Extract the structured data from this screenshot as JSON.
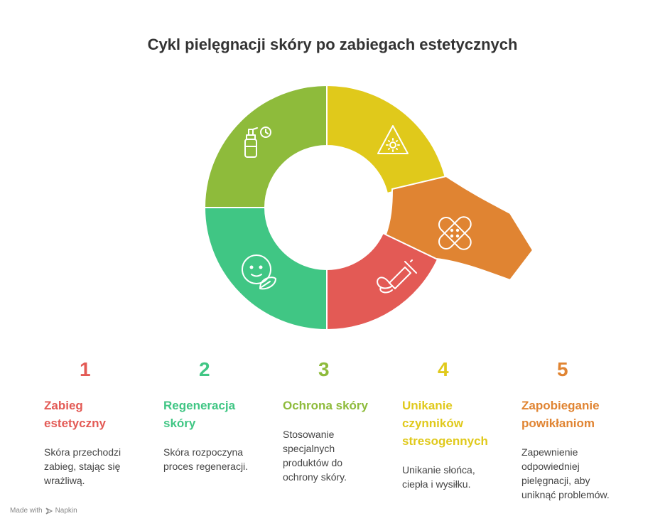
{
  "title": "Cykl pielęgnacji skóry po zabiegach estetycznych",
  "colors": {
    "red": "#E35A55",
    "teal": "#40C684",
    "green": "#8EBB3B",
    "yellow": "#E0C91B",
    "orange": "#E08432"
  },
  "segments": [
    {
      "icon": "syringe-icon",
      "color": "#E35A55"
    },
    {
      "icon": "face-leaf-icon",
      "color": "#40C684"
    },
    {
      "icon": "spray-bottle-icon",
      "color": "#8EBB3B"
    },
    {
      "icon": "sun-warning-icon",
      "color": "#E0C91B"
    },
    {
      "icon": "bandage-icon",
      "color": "#E08432"
    }
  ],
  "steps": [
    {
      "number": "1",
      "heading": "Zabieg estetyczny",
      "description": "Skóra przechodzi zabieg, stając się wrażliwą.",
      "color": "#E35A55"
    },
    {
      "number": "2",
      "heading": "Regeneracja skóry",
      "description": "Skóra rozpoczyna proces regeneracji.",
      "color": "#40C684"
    },
    {
      "number": "3",
      "heading": "Ochrona skóry",
      "description": "Stosowanie specjalnych produktów do ochrony skóry.",
      "color": "#8EBB3B"
    },
    {
      "number": "4",
      "heading": "Unikanie czynników stresogennych",
      "description": "Unikanie słońca, ciepła i wysiłku.",
      "color": "#E0C91B"
    },
    {
      "number": "5",
      "heading": "Zapobieganie powikłaniom",
      "description": "Zapewnienie odpowiedniej pielęgnacji, aby uniknąć problemów.",
      "color": "#E08432"
    }
  ],
  "footer": {
    "made_with": "Made with",
    "brand": "Napkin"
  }
}
